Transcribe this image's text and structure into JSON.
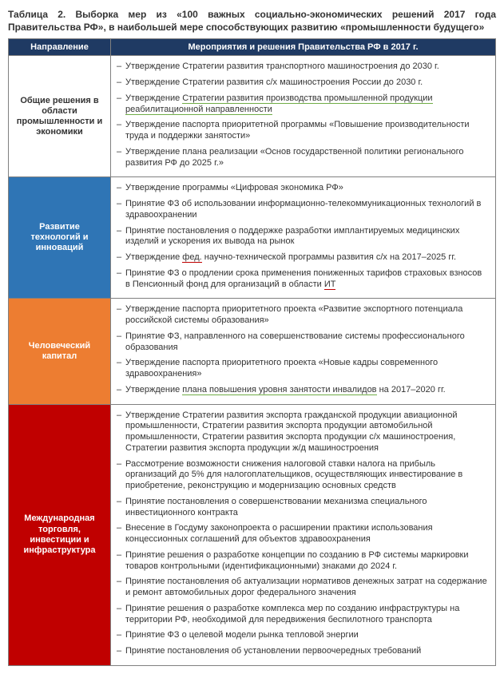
{
  "caption": "Таблица 2. Выборка мер из «100 важных социально-экономических решений 2017 года Правительства РФ», в наибольшей мере способствующих развитию «промышленности будущего»",
  "header": {
    "col1": "Направление",
    "col2": "Мероприятия и решения Правительства РФ в 2017 г."
  },
  "colors": {
    "header_bg": "#1f3a63",
    "section_bg": [
      "#ffffff",
      "#2f75b5",
      "#ed7d31",
      "#c00000"
    ],
    "underline_green": "#70ad47",
    "underline_red": "#c00000",
    "border": "#808080"
  },
  "sections": [
    {
      "name": "Общие решения в области промышленности и экономики",
      "items": [
        [
          {
            "t": "Утверждение Стратегии развития транспортного машиностроения до 2030 г."
          }
        ],
        [
          {
            "t": "Утверждение Стратегии развития с/х машиностроения России до 2030 г."
          }
        ],
        [
          {
            "t": "Утверждение "
          },
          {
            "t": "Стратегии развития производства промышленной продукции реабилитационной направленности",
            "u": "green"
          }
        ],
        [
          {
            "t": "Утверждение паспорта приоритетной программы «Повышение производительности труда и поддержки занятости»"
          }
        ],
        [
          {
            "t": "Утверждение плана реализации «Основ государственной политики регионального развития РФ до 2025 г.»"
          }
        ]
      ]
    },
    {
      "name": "Развитие технологий и инноваций",
      "items": [
        [
          {
            "t": "Утверждение программы «Цифровая экономика РФ»"
          }
        ],
        [
          {
            "t": "Принятие ФЗ об использовании информационно-телекоммуникационных технологий в здравоохранении"
          }
        ],
        [
          {
            "t": "Принятие постановления о поддержке разработки имплантируемых медицинских изделий и ускорения их вывода на рынок"
          }
        ],
        [
          {
            "t": "Утверждение "
          },
          {
            "t": "фед.",
            "u": "red"
          },
          {
            "t": " научно-технической программы развития с/х на 2017–2025 гг."
          }
        ],
        [
          {
            "t": "Принятие ФЗ о продлении срока применения пониженных тарифов страховых взносов в Пенсионный фонд для организаций в области "
          },
          {
            "t": "ИТ",
            "u": "red"
          }
        ]
      ]
    },
    {
      "name": "Человеческий капитал",
      "items": [
        [
          {
            "t": "Утверждение паспорта приоритетного проекта «Развитие экспортного потенциала российской системы образования»"
          }
        ],
        [
          {
            "t": "Принятие ФЗ, направленного на совершенствование системы профессионального образования"
          }
        ],
        [
          {
            "t": "Утверждение паспорта приоритетного проекта «Новые кадры современного здравоохранения»"
          }
        ],
        [
          {
            "t": "Утверждение "
          },
          {
            "t": "плана повышения уровня занятости инвалидов",
            "u": "green"
          },
          {
            "t": " на 2017–2020 гг."
          }
        ]
      ]
    },
    {
      "name": "Международная торговля, инвестиции и инфраструктура",
      "items": [
        [
          {
            "t": "Утверждение Стратегии развития экспорта гражданской продукции авиационной промышленности, Стратегии развития экспорта продукции автомобильной промышленности, Стратегии развития экспорта продукции с/х машиностроения, Стратегии развития экспорта продукции ж/д машиностроения"
          }
        ],
        [
          {
            "t": "Рассмотрение возможности снижения налоговой ставки налога на прибыль организаций до 5% для налогоплательщиков, осуществляющих инвестирование в приобретение, реконструкцию и модернизацию основных средств"
          }
        ],
        [
          {
            "t": "Принятие постановления о совершенствовании механизма специального инвестиционного контракта"
          }
        ],
        [
          {
            "t": "Внесение в Госдуму законопроекта о расширении практики использования концессионных соглашений для объектов здравоохранения"
          }
        ],
        [
          {
            "t": "Принятие решения о разработке концепции по созданию в РФ системы маркировки товаров контрольными (идентификационными) знаками до 2024 г."
          }
        ],
        [
          {
            "t": "Принятие постановления об актуализации нормативов денежных затрат на содержание и ремонт автомобильных дорог федерального значения"
          }
        ],
        [
          {
            "t": "Принятие решения о разработке комплекса мер по созданию инфраструктуры на территории РФ, необходимой для передвижения беспилотного транспорта"
          }
        ],
        [
          {
            "t": "Принятие ФЗ о целевой модели рынка тепловой энергии"
          }
        ],
        [
          {
            "t": "Принятие постановления об установлении первоочередных требований"
          }
        ]
      ]
    }
  ]
}
